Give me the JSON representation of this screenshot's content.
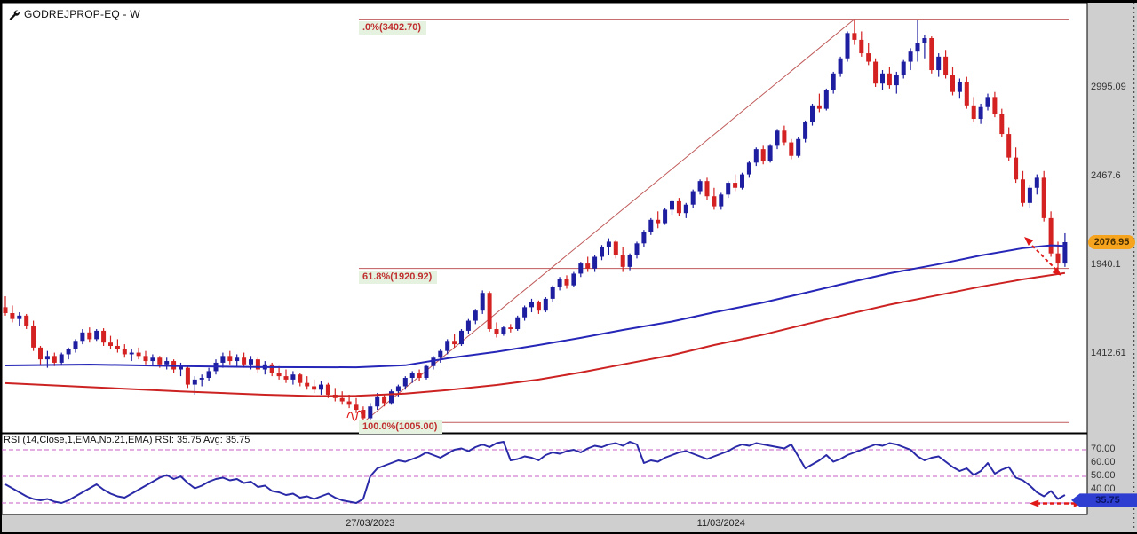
{
  "window": {
    "title": "GODREJPROP-EQ - W"
  },
  "colors": {
    "background": "#cfcfcf",
    "panel": "#ffffff",
    "border": "#000000",
    "bull": "#1e1ea0",
    "bear": "#d42121",
    "ma_fast": "#2626b8",
    "ma_slow": "#cc2222",
    "fib_line": "#c05a5a",
    "fib_label_text": "#c03030",
    "fib_label_bg": "#e6f2e0",
    "trendline": "#c05a5a",
    "arrow": "#e01818",
    "rsi_line": "#2a2aa8",
    "rsi_level": "#c75fc7",
    "price_tag_bg": "#f6a31d",
    "rsi_tag_bg": "#2e3ed1"
  },
  "price_axis": {
    "labels": [
      {
        "text": "2995.09",
        "value": 2995.09
      },
      {
        "text": "2467.6",
        "value": 2467.6
      },
      {
        "text": "1940.1",
        "value": 1940.1
      },
      {
        "text": "1412.61",
        "value": 1412.61
      }
    ],
    "tag": {
      "text": "2076.95",
      "value": 2076.95
    }
  },
  "time_axis": {
    "labels": [
      {
        "text": "27/03/2023",
        "week": 52
      },
      {
        "text": "11/03/2024",
        "week": 102
      }
    ]
  },
  "chart_data": {
    "type": "candlestick",
    "symbol": "GODREJPROP-EQ",
    "interval": "W",
    "price_axis": {
      "top_price": 3501,
      "bottom_price": 943
    },
    "fib_levels": [
      {
        "label": ".0%(3402.70)",
        "price": 3402.7
      },
      {
        "label": "61.8%(1920.92)",
        "price": 1920.92
      },
      {
        "label": "100.0%(1005.00)",
        "price": 1005.0
      }
    ],
    "trendline": {
      "from_week": 51,
      "from_price": 1005.0,
      "to_week": 121,
      "to_price": 3402.7
    },
    "candles": [
      [
        1690,
        1755,
        1640,
        1655
      ],
      [
        1655,
        1700,
        1600,
        1620
      ],
      [
        1620,
        1660,
        1580,
        1640
      ],
      [
        1640,
        1650,
        1560,
        1580
      ],
      [
        1580,
        1610,
        1430,
        1450
      ],
      [
        1450,
        1460,
        1350,
        1380
      ],
      [
        1380,
        1430,
        1330,
        1400
      ],
      [
        1400,
        1420,
        1340,
        1360
      ],
      [
        1360,
        1420,
        1350,
        1410
      ],
      [
        1410,
        1450,
        1380,
        1440
      ],
      [
        1440,
        1500,
        1420,
        1490
      ],
      [
        1490,
        1560,
        1470,
        1540
      ],
      [
        1540,
        1570,
        1480,
        1500
      ],
      [
        1500,
        1560,
        1490,
        1550
      ],
      [
        1550,
        1565,
        1460,
        1480
      ],
      [
        1480,
        1520,
        1440,
        1460
      ],
      [
        1460,
        1500,
        1420,
        1440
      ],
      [
        1440,
        1470,
        1390,
        1410
      ],
      [
        1410,
        1440,
        1370,
        1420
      ],
      [
        1420,
        1450,
        1380,
        1400
      ],
      [
        1400,
        1430,
        1350,
        1370
      ],
      [
        1370,
        1410,
        1340,
        1390
      ],
      [
        1390,
        1400,
        1330,
        1350
      ],
      [
        1350,
        1390,
        1320,
        1370
      ],
      [
        1370,
        1380,
        1300,
        1320
      ],
      [
        1320,
        1360,
        1280,
        1340
      ],
      [
        1330,
        1340,
        1210,
        1230
      ],
      [
        1230,
        1280,
        1170,
        1260
      ],
      [
        1260,
        1290,
        1220,
        1270
      ],
      [
        1270,
        1330,
        1250,
        1310
      ],
      [
        1310,
        1380,
        1290,
        1360
      ],
      [
        1360,
        1420,
        1330,
        1400
      ],
      [
        1400,
        1430,
        1350,
        1370
      ],
      [
        1370,
        1410,
        1340,
        1390
      ],
      [
        1390,
        1420,
        1330,
        1350
      ],
      [
        1350,
        1400,
        1320,
        1380
      ],
      [
        1380,
        1390,
        1300,
        1320
      ],
      [
        1320,
        1370,
        1290,
        1350
      ],
      [
        1350,
        1360,
        1280,
        1300
      ],
      [
        1300,
        1340,
        1260,
        1280
      ],
      [
        1280,
        1320,
        1240,
        1260
      ],
      [
        1260,
        1310,
        1230,
        1290
      ],
      [
        1290,
        1300,
        1220,
        1240
      ],
      [
        1240,
        1280,
        1200,
        1220
      ],
      [
        1220,
        1260,
        1180,
        1200
      ],
      [
        1200,
        1250,
        1170,
        1230
      ],
      [
        1230,
        1240,
        1150,
        1170
      ],
      [
        1170,
        1210,
        1130,
        1150
      ],
      [
        1150,
        1190,
        1110,
        1130
      ],
      [
        1130,
        1170,
        1090,
        1110
      ],
      [
        1110,
        1150,
        1060,
        1080
      ],
      [
        1080,
        1100,
        1005,
        1030
      ],
      [
        1030,
        1120,
        1020,
        1100
      ],
      [
        1100,
        1180,
        1080,
        1160
      ],
      [
        1160,
        1170,
        1100,
        1120
      ],
      [
        1120,
        1200,
        1110,
        1190
      ],
      [
        1190,
        1230,
        1160,
        1220
      ],
      [
        1220,
        1280,
        1200,
        1270
      ],
      [
        1270,
        1310,
        1240,
        1300
      ],
      [
        1300,
        1320,
        1250,
        1270
      ],
      [
        1270,
        1350,
        1260,
        1340
      ],
      [
        1340,
        1400,
        1320,
        1390
      ],
      [
        1390,
        1440,
        1360,
        1430
      ],
      [
        1430,
        1500,
        1410,
        1490
      ],
      [
        1490,
        1530,
        1450,
        1470
      ],
      [
        1470,
        1560,
        1460,
        1550
      ],
      [
        1550,
        1620,
        1530,
        1610
      ],
      [
        1610,
        1680,
        1590,
        1670
      ],
      [
        1670,
        1790,
        1650,
        1775
      ],
      [
        1775,
        1785,
        1545,
        1560
      ],
      [
        1560,
        1600,
        1510,
        1530
      ],
      [
        1530,
        1580,
        1520,
        1570
      ],
      [
        1570,
        1590,
        1540,
        1560
      ],
      [
        1560,
        1640,
        1550,
        1630
      ],
      [
        1630,
        1700,
        1610,
        1690
      ],
      [
        1690,
        1740,
        1660,
        1720
      ],
      [
        1720,
        1730,
        1650,
        1670
      ],
      [
        1670,
        1750,
        1660,
        1740
      ],
      [
        1740,
        1820,
        1720,
        1810
      ],
      [
        1810,
        1870,
        1790,
        1860
      ],
      [
        1860,
        1880,
        1800,
        1820
      ],
      [
        1820,
        1900,
        1810,
        1890
      ],
      [
        1890,
        1960,
        1870,
        1950
      ],
      [
        1950,
        1990,
        1900,
        1920
      ],
      [
        1920,
        2000,
        1900,
        1990
      ],
      [
        1990,
        2060,
        1970,
        2050
      ],
      [
        2050,
        2100,
        2000,
        2080
      ],
      [
        2080,
        2090,
        1980,
        2000
      ],
      [
        2000,
        2050,
        1900,
        1930
      ],
      [
        1930,
        2010,
        1910,
        2000
      ],
      [
        2000,
        2080,
        1980,
        2070
      ],
      [
        2070,
        2150,
        2050,
        2140
      ],
      [
        2140,
        2220,
        2120,
        2210
      ],
      [
        2210,
        2260,
        2160,
        2190
      ],
      [
        2190,
        2280,
        2180,
        2270
      ],
      [
        2270,
        2330,
        2240,
        2320
      ],
      [
        2320,
        2340,
        2230,
        2250
      ],
      [
        2250,
        2310,
        2220,
        2300
      ],
      [
        2300,
        2390,
        2280,
        2380
      ],
      [
        2380,
        2450,
        2360,
        2440
      ],
      [
        2440,
        2460,
        2330,
        2350
      ],
      [
        2350,
        2400,
        2270,
        2290
      ],
      [
        2290,
        2370,
        2270,
        2360
      ],
      [
        2360,
        2440,
        2340,
        2430
      ],
      [
        2430,
        2480,
        2380,
        2400
      ],
      [
        2400,
        2490,
        2390,
        2480
      ],
      [
        2480,
        2560,
        2460,
        2550
      ],
      [
        2550,
        2640,
        2530,
        2630
      ],
      [
        2630,
        2650,
        2540,
        2560
      ],
      [
        2560,
        2660,
        2550,
        2650
      ],
      [
        2650,
        2750,
        2630,
        2740
      ],
      [
        2740,
        2770,
        2650,
        2670
      ],
      [
        2670,
        2690,
        2570,
        2590
      ],
      [
        2590,
        2700,
        2580,
        2690
      ],
      [
        2690,
        2800,
        2670,
        2790
      ],
      [
        2790,
        2900,
        2770,
        2890
      ],
      [
        2890,
        2960,
        2850,
        2870
      ],
      [
        2870,
        2990,
        2860,
        2980
      ],
      [
        2980,
        3090,
        2960,
        3080
      ],
      [
        3080,
        3180,
        3060,
        3170
      ],
      [
        3170,
        3330,
        3150,
        3320
      ],
      [
        3320,
        3403,
        3250,
        3280
      ],
      [
        3280,
        3330,
        3180,
        3200
      ],
      [
        3200,
        3260,
        3130,
        3150
      ],
      [
        3150,
        3170,
        3000,
        3020
      ],
      [
        3020,
        3100,
        2980,
        3080
      ],
      [
        3080,
        3120,
        2990,
        3010
      ],
      [
        3010,
        3090,
        2960,
        3070
      ],
      [
        3070,
        3160,
        3050,
        3150
      ],
      [
        3150,
        3230,
        3100,
        3210
      ],
      [
        3210,
        3400,
        3150,
        3260
      ],
      [
        3260,
        3310,
        3170,
        3290
      ],
      [
        3290,
        3300,
        3080,
        3100
      ],
      [
        3100,
        3200,
        3060,
        3180
      ],
      [
        3180,
        3220,
        3050,
        3070
      ],
      [
        3070,
        3120,
        2950,
        2970
      ],
      [
        2970,
        3050,
        2930,
        3030
      ],
      [
        3030,
        3060,
        2870,
        2890
      ],
      [
        2890,
        2940,
        2790,
        2810
      ],
      [
        2810,
        2900,
        2780,
        2880
      ],
      [
        2880,
        2960,
        2860,
        2940
      ],
      [
        2940,
        2970,
        2820,
        2840
      ],
      [
        2840,
        2870,
        2700,
        2720
      ],
      [
        2720,
        2760,
        2560,
        2580
      ],
      [
        2580,
        2640,
        2430,
        2450
      ],
      [
        2450,
        2500,
        2290,
        2310
      ],
      [
        2310,
        2420,
        2280,
        2400
      ],
      [
        2400,
        2480,
        2360,
        2460
      ],
      [
        2460,
        2500,
        2200,
        2220
      ],
      [
        2220,
        2260,
        1990,
        2010
      ],
      [
        2010,
        2080,
        1910,
        1950
      ],
      [
        1950,
        2130,
        1930,
        2077
      ]
    ],
    "ma_fast": [
      [
        0,
        1344
      ],
      [
        12,
        1349
      ],
      [
        25,
        1340
      ],
      [
        37,
        1334
      ],
      [
        50,
        1333
      ],
      [
        57,
        1345
      ],
      [
        63,
        1386
      ],
      [
        70,
        1425
      ],
      [
        76,
        1465
      ],
      [
        82,
        1508
      ],
      [
        88,
        1555
      ],
      [
        95,
        1605
      ],
      [
        101,
        1660
      ],
      [
        108,
        1718
      ],
      [
        114,
        1776
      ],
      [
        120,
        1835
      ],
      [
        126,
        1892
      ],
      [
        133,
        1946
      ],
      [
        139,
        1998
      ],
      [
        145,
        2041
      ],
      [
        149,
        2058
      ],
      [
        151,
        2055
      ]
    ],
    "ma_slow": [
      [
        0,
        1239
      ],
      [
        12,
        1215
      ],
      [
        25,
        1190
      ],
      [
        37,
        1170
      ],
      [
        44,
        1162
      ],
      [
        50,
        1163
      ],
      [
        57,
        1176
      ],
      [
        63,
        1198
      ],
      [
        70,
        1228
      ],
      [
        76,
        1260
      ],
      [
        82,
        1302
      ],
      [
        88,
        1350
      ],
      [
        95,
        1405
      ],
      [
        101,
        1465
      ],
      [
        108,
        1527
      ],
      [
        114,
        1588
      ],
      [
        120,
        1648
      ],
      [
        126,
        1705
      ],
      [
        133,
        1762
      ],
      [
        139,
        1812
      ],
      [
        145,
        1856
      ],
      [
        151,
        1894
      ]
    ],
    "rsi": {
      "title": "RSI (14,Close,1,EMA,No.21,EMA) RSI: 35.75 Avg: 35.75",
      "value": 35.75,
      "avg": 35.75,
      "tag": "35.75",
      "levels": [
        70,
        50,
        30
      ],
      "axis_labels": [
        {
          "text": "70.00",
          "value": 70
        },
        {
          "text": "60.00",
          "value": 60
        },
        {
          "text": "50.00",
          "value": 50
        },
        {
          "text": "40.00",
          "value": 40
        }
      ],
      "ylim": [
        21.3,
        82
      ],
      "values": [
        44,
        41,
        38,
        35,
        33,
        32,
        33,
        31,
        30,
        32,
        35,
        38,
        41,
        44,
        40,
        37,
        35,
        34,
        37,
        40,
        43,
        46,
        49,
        51,
        48,
        50,
        45,
        41,
        43,
        46,
        48,
        49,
        47,
        48,
        45,
        46,
        42,
        43,
        39,
        38,
        36,
        37,
        34,
        35,
        33,
        35,
        37,
        34,
        32,
        31,
        30,
        33,
        50,
        56,
        58,
        60,
        62,
        61,
        63,
        65,
        68,
        66,
        64,
        67,
        70,
        71,
        69,
        72,
        74,
        72,
        75,
        76,
        62,
        63,
        65,
        64,
        62,
        66,
        68,
        67,
        69,
        70,
        68,
        71,
        73,
        72,
        74,
        75,
        73,
        76,
        74,
        60,
        62,
        61,
        64,
        66,
        68,
        69,
        67,
        65,
        63,
        65,
        67,
        69,
        72,
        74,
        73,
        75,
        74,
        73,
        72,
        71,
        74,
        65,
        56,
        59,
        62,
        66,
        61,
        63,
        66,
        68,
        70,
        72,
        74,
        73,
        75,
        74,
        72,
        70,
        65,
        62,
        64,
        65,
        61,
        57,
        54,
        56,
        51,
        54,
        60,
        52,
        55,
        57,
        49,
        47,
        43,
        38,
        35,
        39,
        33,
        36
      ]
    }
  }
}
